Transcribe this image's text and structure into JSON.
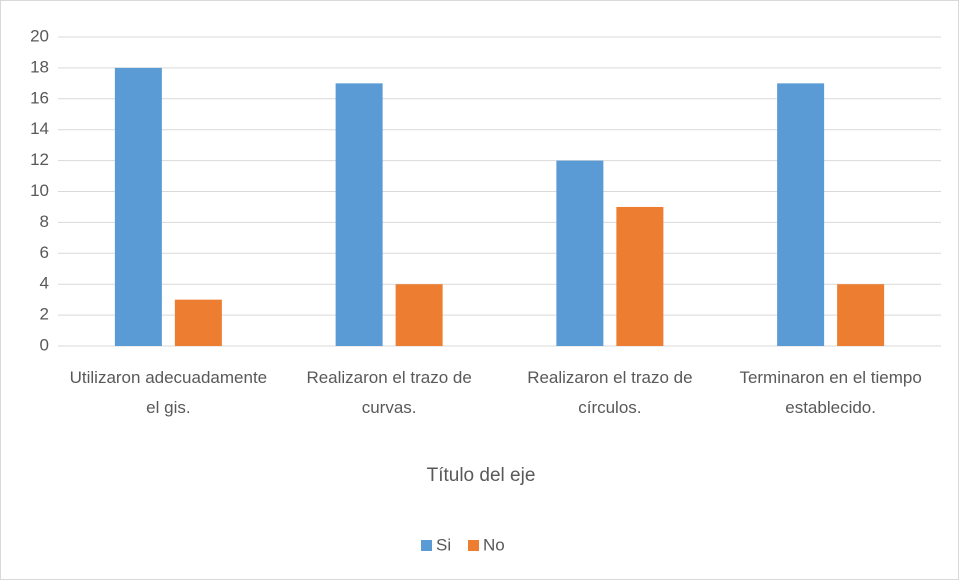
{
  "chart_data": {
    "type": "bar",
    "categories": [
      "Utilizaron adecuadamente el gis.",
      "Realizaron el trazo de curvas.",
      "Realizaron el trazo de círculos.",
      "Terminaron en el tiempo establecido."
    ],
    "series": [
      {
        "name": "Si",
        "color": "#5b9bd5",
        "values": [
          18,
          17,
          12,
          17
        ]
      },
      {
        "name": "No",
        "color": "#ed7d31",
        "values": [
          3,
          4,
          9,
          4
        ]
      }
    ],
    "x_label": "Título del eje",
    "ylim": [
      0,
      20
    ],
    "yticks": [
      0,
      2,
      4,
      6,
      8,
      10,
      12,
      14,
      16,
      18,
      20
    ],
    "grid": true,
    "legend": "bottom"
  }
}
